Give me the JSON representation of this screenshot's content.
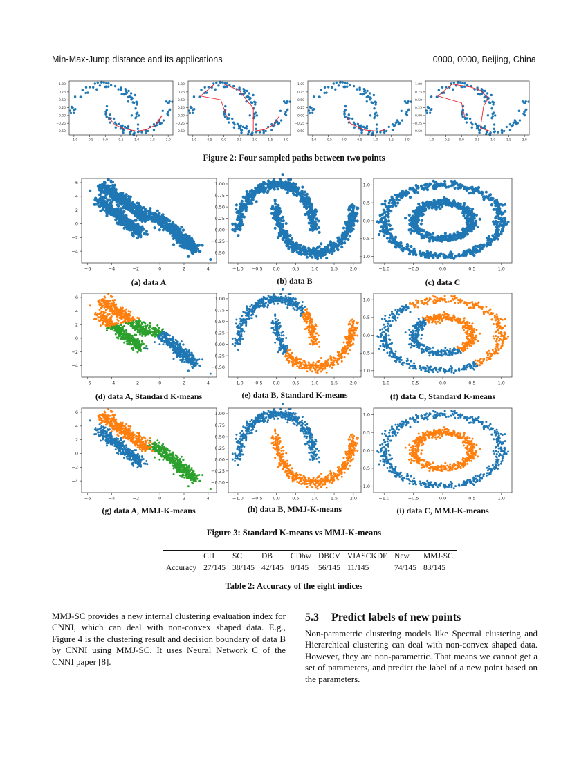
{
  "header": {
    "left": "Min-Max-Jump distance and its applications",
    "right": "0000, 0000, Beijing, China"
  },
  "figure2": {
    "caption": "Figure 2: Four sampled paths between two points"
  },
  "figure3": {
    "caption": "Figure 3: Standard K-means vs MMJ-K-means",
    "subcaptions": [
      "(a) data A",
      "(b) data B",
      "(c) data C",
      "(d) data A, Standard K-means",
      "(e) data B, Standard K-means",
      "(f) data C, Standard K-means",
      "(g) data A, MMJ-K-means",
      "(h) data B, MMJ-K-means",
      "(i) data C, MMJ-K-means"
    ]
  },
  "table": {
    "caption": "Table 2: Accuracy of the eight indices",
    "columns": [
      "",
      "CH",
      "SC",
      "DB",
      "CDbw",
      "DBCV",
      "VIASCKDE",
      "New",
      "MMJ-SC"
    ],
    "rows": [
      [
        "Accuracy",
        "27/145",
        "38/145",
        "42/145",
        "8/145",
        "56/145",
        "11/145",
        "74/145",
        "83/145"
      ]
    ]
  },
  "left_paragraph": "MMJ-SC provides a new internal clustering evaluation index for CNNI, which can deal with non-convex shaped data. E.g., Figure 4 is the clustering result and decision boundary of data B by CNNI using MMJ-SC. It uses Neural Network C of the CNNI paper [8].",
  "section": {
    "number": "5.3",
    "title": "Predict labels of new points",
    "body": "Non-parametric clustering models like Spectral clustering and Hierarchical clustering can deal with non-convex shaped data. However, they are non-parametric. That means we cannot get a set of parameters, and predict the label of a new point based on the parameters."
  },
  "colors": {
    "blue": "#1f77b4",
    "orange": "#ff7f0e",
    "green": "#2ca02c",
    "path_red": "#e8202a"
  },
  "chart_data": [
    {
      "id": "fig2",
      "type": "scatter",
      "panels": 4,
      "dataset": "two moons (sparse) with sampled paths",
      "x_ticks": [
        "-1.0",
        "-0.5",
        "0.0",
        "0.5",
        "1.0",
        "1.5",
        "2.0"
      ],
      "y_ticks": [
        "1.00",
        "0.75",
        "0.50",
        "0.25",
        "0.00",
        "-0.25",
        "-0.50"
      ],
      "xlim": [
        -1.15,
        2.15
      ],
      "ylim": [
        -0.62,
        1.1
      ],
      "series_colors": [
        "#1f77b4",
        "#e8202a"
      ]
    },
    {
      "id": "A",
      "type": "scatter",
      "dataset": "data A",
      "x_ticks": [
        "-6",
        "-4",
        "-2",
        "0",
        "2",
        "4"
      ],
      "y_ticks": [
        "6",
        "4",
        "2",
        "0",
        "-2",
        "-4"
      ],
      "xlim": [
        -6.5,
        4.7
      ],
      "ylim": [
        -5.7,
        6.6
      ],
      "clusters": 3
    },
    {
      "id": "B",
      "type": "scatter",
      "dataset": "data B",
      "x_ticks": [
        "-1.0",
        "-0.5",
        "0.0",
        "0.5",
        "1.0",
        "1.5",
        "2.0"
      ],
      "y_ticks": [
        "1.00",
        "0.75",
        "0.50",
        "0.25",
        "0.00",
        "-0.25",
        "-0.50"
      ],
      "xlim": [
        -1.25,
        2.2
      ],
      "ylim": [
        -0.72,
        1.12
      ],
      "clusters": 2
    },
    {
      "id": "C",
      "type": "scatter",
      "dataset": "data C",
      "x_ticks": [
        "-1.0",
        "-0.5",
        "0.0",
        "0.5",
        "1.0"
      ],
      "y_ticks": [
        "1.0",
        "0.5",
        "0.0",
        "-0.5",
        "-1.0"
      ],
      "xlim": [
        -1.18,
        1.18
      ],
      "ylim": [
        -1.18,
        1.18
      ],
      "clusters": 2
    }
  ]
}
